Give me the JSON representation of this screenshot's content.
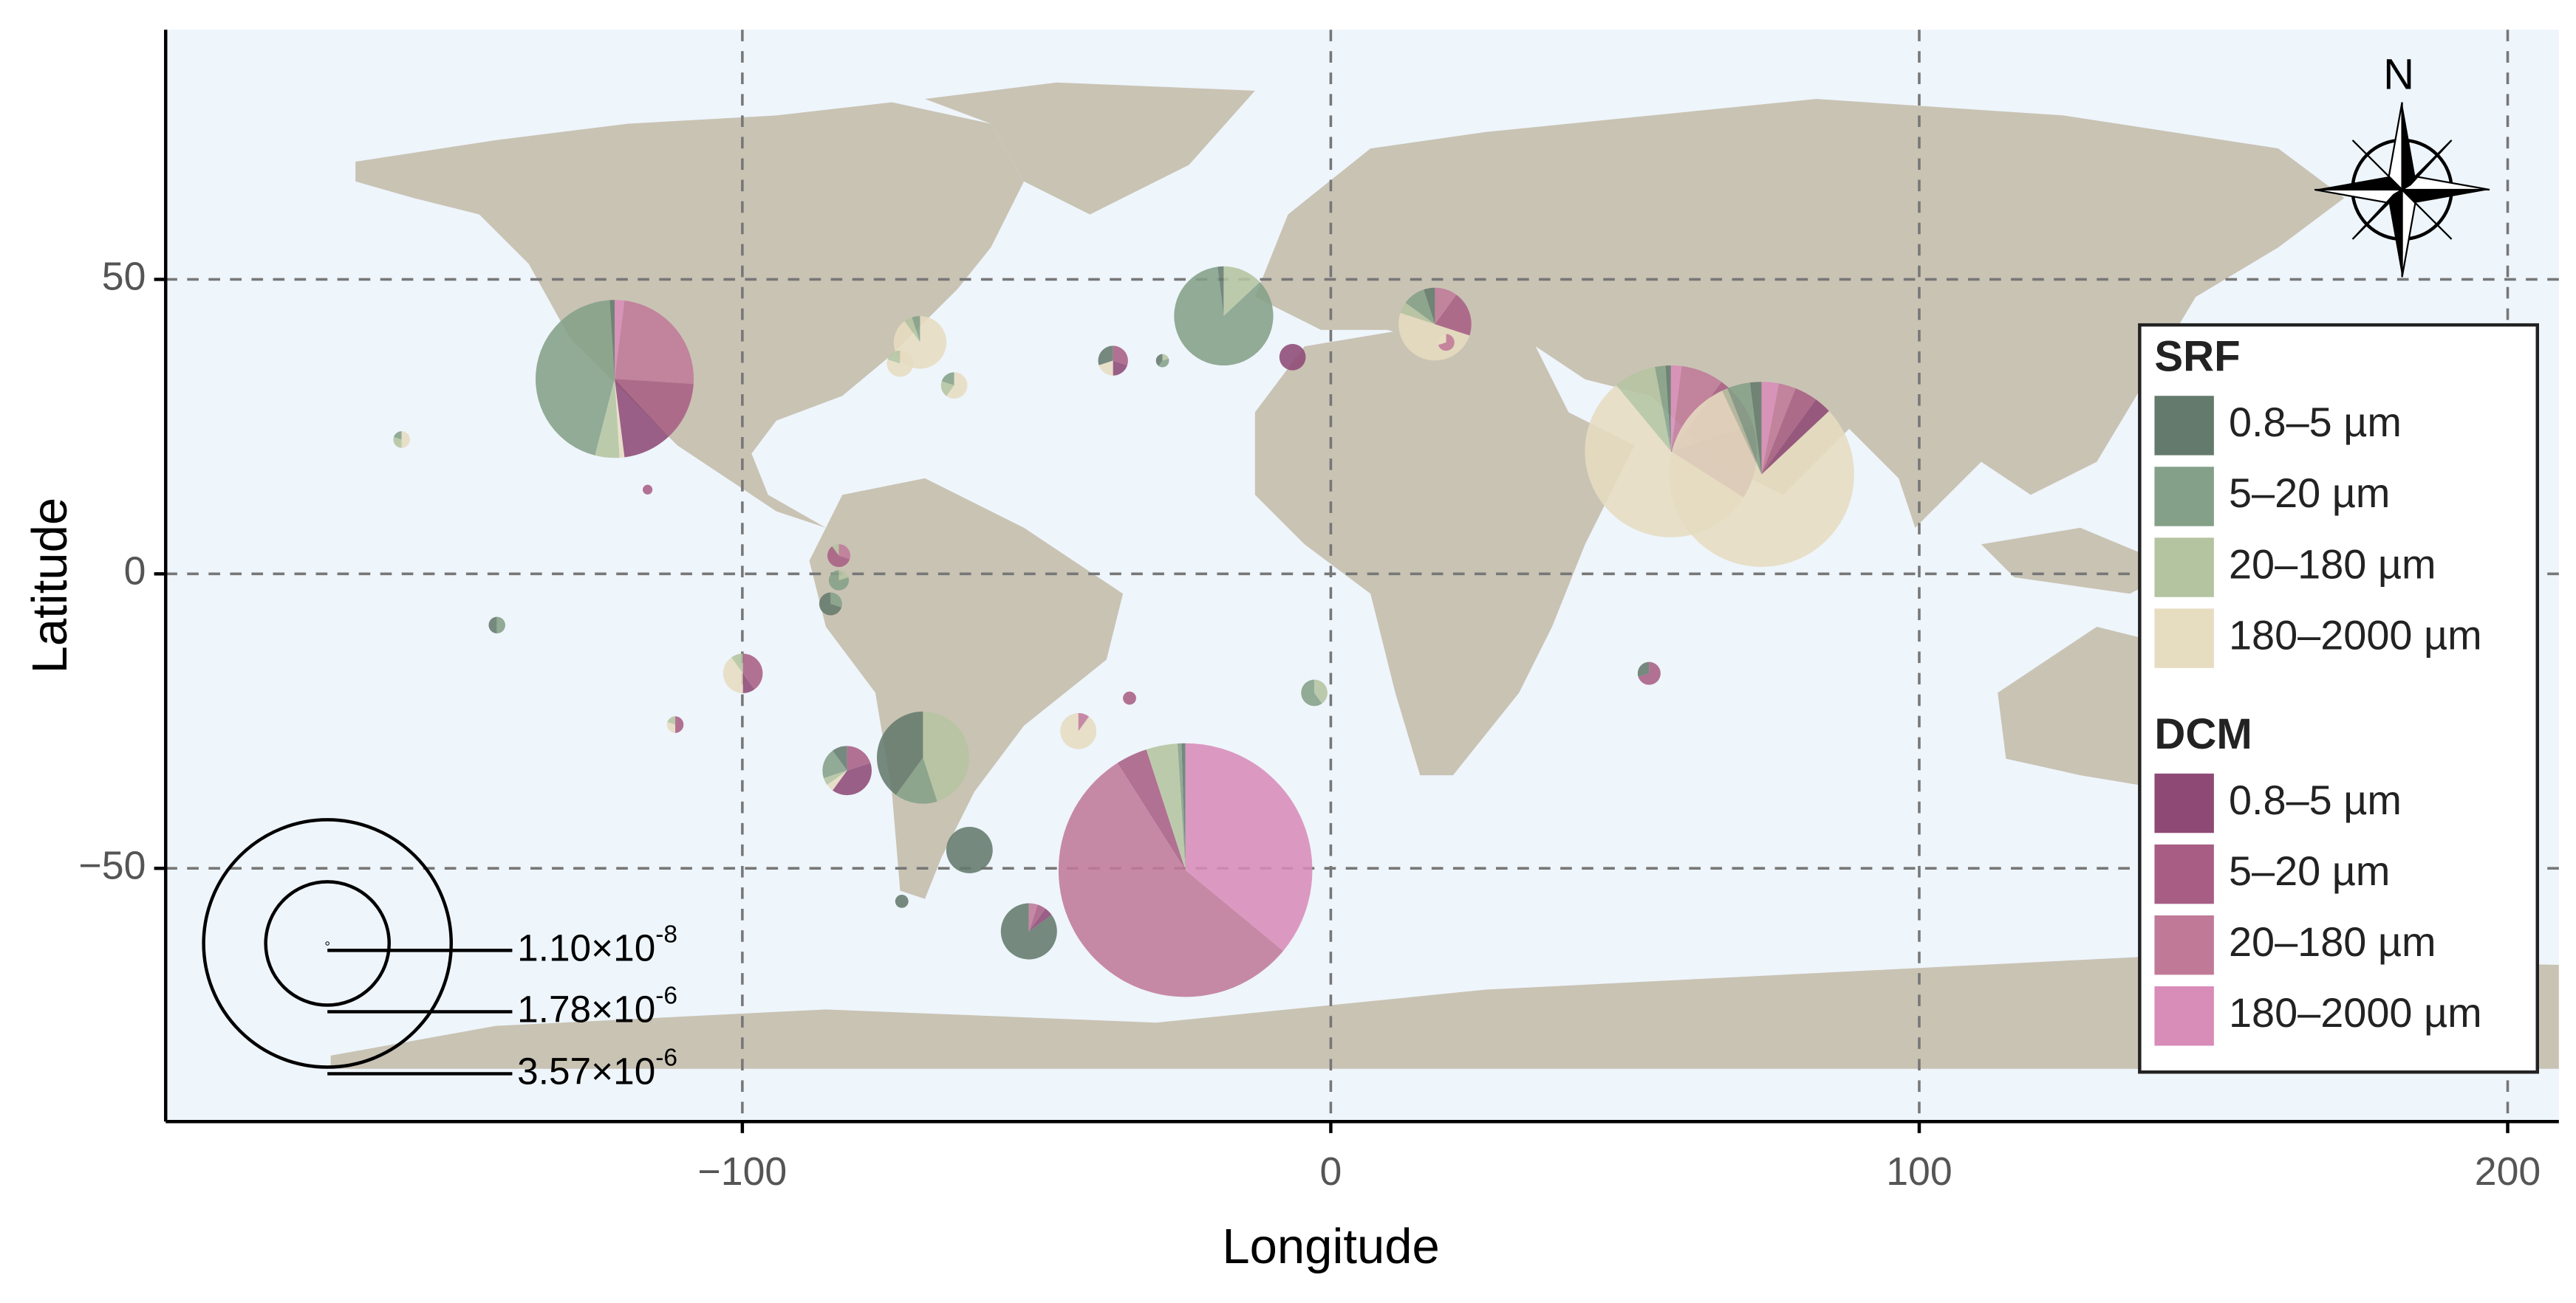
{
  "chart_data": {
    "type": "pie-map",
    "xlabel": "Longitude",
    "ylabel": "Latitude",
    "xlim": [
      -198,
      208.7
    ],
    "ylim": [
      -93,
      92.4
    ],
    "xticks": [
      {
        "value": -100,
        "label": "−100"
      },
      0,
      100,
      200
    ],
    "yticks": [
      {
        "value": -50,
        "label": "−50"
      },
      0,
      50
    ],
    "grid": true,
    "compass_label": "N",
    "legend": [
      {
        "title": "SRF",
        "series": [
          {
            "name": "0.8–5 µm",
            "color": "#647a6c"
          },
          {
            "name": "5–20 µm",
            "color": "#84a088"
          },
          {
            "name": "20–180 µm",
            "color": "#b5c4a0"
          },
          {
            "name": "180–2000 µm",
            "color": "#e6dcc0"
          }
        ]
      },
      {
        "title": "DCM",
        "series": [
          {
            "name": "0.8–5 µm",
            "color": "#8e4a75"
          },
          {
            "name": "5–20 µm",
            "color": "#a85e84"
          },
          {
            "name": "20–180 µm",
            "color": "#c07a98"
          },
          {
            "name": "180–2000 µm",
            "color": "#d88cb8"
          }
        ]
      }
    ],
    "size_legend": [
      {
        "value": 1.1e-08,
        "label": "1.10×10",
        "exponent": "-8"
      },
      {
        "value": 1.78e-06,
        "label": "1.78×10",
        "exponent": "-6"
      },
      {
        "value": 3.57e-06,
        "label": "3.57×10",
        "exponent": "-6"
      }
    ],
    "pies": [
      {
        "lon": -121.7,
        "lat": 33.1,
        "size": 2.28e-06,
        "values": [
          1,
          45,
          5,
          1,
          10,
          12,
          24,
          2
        ]
      },
      {
        "lon": -24.7,
        "lat": -50.3,
        "size": 3.66e-06,
        "values": [
          0.5,
          0.5,
          4,
          0,
          0,
          4,
          55,
          36
        ]
      },
      {
        "lon": 57.8,
        "lat": 20.8,
        "size": 2.48e-06,
        "values": [
          1,
          2,
          8,
          55,
          14,
          10,
          8,
          2
        ]
      },
      {
        "lon": 73.2,
        "lat": 16.9,
        "size": 2.67e-06,
        "values": [
          2,
          4,
          1,
          80,
          3,
          4,
          3,
          3
        ]
      },
      {
        "lon": -18.2,
        "lat": 43.8,
        "size": 1.43e-06,
        "values": [
          2,
          85,
          13,
          0,
          0,
          0,
          0,
          0
        ]
      },
      {
        "lon": -69.3,
        "lat": -31.2,
        "size": 1.33e-06,
        "values": [
          40,
          15,
          45,
          0,
          0,
          0,
          0,
          0
        ]
      },
      {
        "lon": -61.4,
        "lat": -46.9,
        "size": 6.7e-07,
        "values": [
          100,
          0,
          0,
          0,
          0,
          0,
          0,
          0
        ]
      },
      {
        "lon": -51.3,
        "lat": -60.7,
        "size": 8.1e-07,
        "values": [
          85,
          0,
          0,
          0,
          5,
          5,
          5,
          0
        ]
      },
      {
        "lon": -82.2,
        "lat": -33.4,
        "size": 7.1e-07,
        "values": [
          10,
          20,
          5,
          5,
          40,
          20,
          0,
          0
        ]
      },
      {
        "lon": 17.7,
        "lat": 42.4,
        "size": 1.05e-06,
        "values": [
          5,
          10,
          5,
          50,
          0,
          20,
          10,
          0
        ]
      },
      {
        "lon": -69.8,
        "lat": 39.3,
        "size": 7.6e-07,
        "values": [
          0,
          5,
          5,
          90,
          0,
          0,
          0,
          0
        ]
      },
      {
        "lon": -6.5,
        "lat": 36.8,
        "size": 3.8e-07,
        "values": [
          0,
          0,
          0,
          0,
          100,
          0,
          0,
          0
        ]
      },
      {
        "lon": -37,
        "lat": 36.2,
        "size": 4.3e-07,
        "values": [
          30,
          0,
          0,
          20,
          20,
          30,
          0,
          0
        ]
      },
      {
        "lon": -99.9,
        "lat": -16.9,
        "size": 5.7e-07,
        "values": [
          0,
          0,
          10,
          40,
          10,
          40,
          0,
          0
        ]
      },
      {
        "lon": -42.9,
        "lat": -26.7,
        "size": 5.2e-07,
        "values": [
          0,
          0,
          0,
          90,
          0,
          0,
          10,
          0
        ]
      },
      {
        "lon": -64,
        "lat": 32,
        "size": 3.8e-07,
        "values": [
          0,
          20,
          20,
          60,
          0,
          0,
          0,
          0
        ]
      },
      {
        "lon": -83.6,
        "lat": 3.1,
        "size": 3.3e-07,
        "values": [
          0,
          0,
          10,
          0,
          0,
          60,
          30,
          0
        ]
      },
      {
        "lon": -83.6,
        "lat": -1.1,
        "size": 2.9e-07,
        "values": [
          0,
          80,
          20,
          0,
          0,
          0,
          0,
          0
        ]
      },
      {
        "lon": -85,
        "lat": -5.1,
        "size": 3.3e-07,
        "values": [
          70,
          30,
          0,
          0,
          0,
          0,
          0,
          0
        ]
      },
      {
        "lon": -2.8,
        "lat": -20.2,
        "size": 3.8e-07,
        "values": [
          0,
          60,
          40,
          0,
          0,
          0,
          0,
          0
        ]
      },
      {
        "lon": 54.1,
        "lat": -16.9,
        "size": 3.3e-07,
        "values": [
          30,
          0,
          0,
          0,
          0,
          70,
          0,
          0
        ]
      },
      {
        "lon": -141.7,
        "lat": -8.7,
        "size": 2.4e-07,
        "values": [
          50,
          50,
          0,
          0,
          0,
          0,
          0,
          0
        ]
      },
      {
        "lon": -157.9,
        "lat": 22.8,
        "size": 2.4e-07,
        "values": [
          0,
          20,
          30,
          50,
          0,
          0,
          0,
          0
        ]
      },
      {
        "lon": -111.4,
        "lat": -25.6,
        "size": 2.4e-07,
        "values": [
          0,
          0,
          20,
          30,
          0,
          50,
          0,
          0
        ]
      },
      {
        "lon": -72.9,
        "lat": -55.6,
        "size": 1.9e-07,
        "values": [
          100,
          0,
          0,
          0,
          0,
          0,
          0,
          0
        ]
      },
      {
        "lon": -28.6,
        "lat": 36.2,
        "size": 1.9e-07,
        "values": [
          40,
          40,
          20,
          0,
          0,
          0,
          0,
          0
        ]
      },
      {
        "lon": 19.6,
        "lat": 39.3,
        "size": 2.4e-07,
        "values": [
          0,
          0,
          0,
          30,
          0,
          0,
          70,
          0
        ]
      },
      {
        "lon": -73.2,
        "lat": 35.7,
        "size": 3.8e-07,
        "values": [
          0,
          0,
          20,
          80,
          0,
          0,
          0,
          0
        ]
      },
      {
        "lon": -34.2,
        "lat": -21.1,
        "size": 1.9e-07,
        "values": [
          0,
          0,
          0,
          0,
          0,
          100,
          0,
          0
        ]
      },
      {
        "lon": -116.1,
        "lat": 14.3,
        "size": 1.4e-07,
        "values": [
          0,
          0,
          0,
          0,
          0,
          100,
          0,
          0
        ]
      }
    ]
  }
}
